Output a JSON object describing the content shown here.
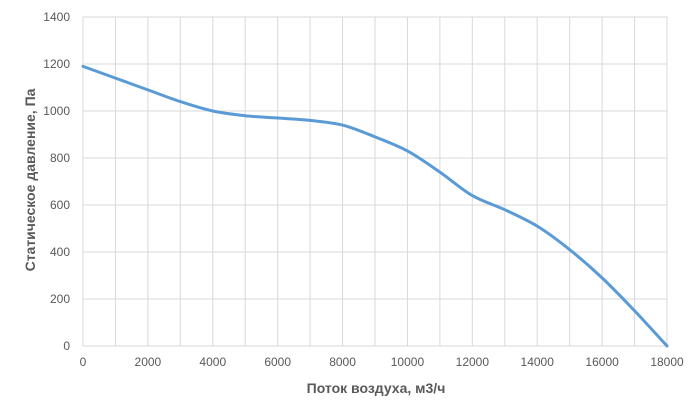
{
  "chart_data": {
    "type": "line",
    "title": "",
    "xlabel": "Поток воздуха, м3/ч",
    "ylabel": "Статическое давление, Па",
    "xlim": [
      0,
      18000
    ],
    "ylim": [
      0,
      1400
    ],
    "x_ticks": [
      0,
      2000,
      4000,
      6000,
      8000,
      10000,
      12000,
      14000,
      16000,
      18000
    ],
    "y_ticks": [
      0,
      200,
      400,
      600,
      800,
      1000,
      1200,
      1400
    ],
    "x_minor_grid": [
      1000,
      3000,
      5000,
      7000,
      9000,
      11000,
      13000,
      15000,
      17000
    ],
    "grid": true,
    "series": [
      {
        "color": "#5b9bd5",
        "x": [
          0,
          1000,
          2000,
          3000,
          4000,
          5000,
          6000,
          7000,
          8000,
          9000,
          10000,
          11000,
          12000,
          13000,
          14000,
          15000,
          16000,
          17000,
          18000
        ],
        "y": [
          1190,
          1140,
          1090,
          1040,
          1000,
          980,
          970,
          960,
          940,
          890,
          830,
          740,
          640,
          580,
          510,
          410,
          290,
          150,
          0
        ]
      }
    ]
  }
}
